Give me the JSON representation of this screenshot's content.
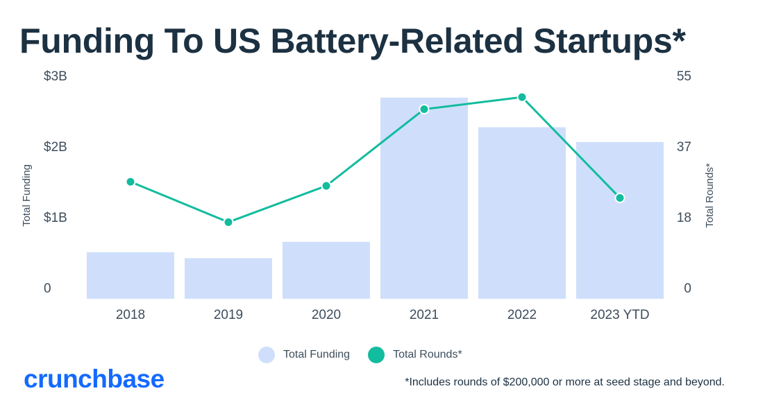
{
  "title": "Funding To US Battery-Related Startups*",
  "chart_data": {
    "type": "bar",
    "title": "Funding To US Battery-Related Startups*",
    "categories": [
      "2018",
      "2019",
      "2020",
      "2021",
      "2022",
      "2023 YTD"
    ],
    "series": [
      {
        "name": "Total Funding",
        "type": "bar",
        "axis": "left",
        "color": "#cfdffb",
        "values": [
          0.63,
          0.55,
          0.77,
          2.72,
          2.32,
          2.12
        ]
      },
      {
        "name": "Total Rounds*",
        "type": "line",
        "axis": "right",
        "color": "#12bc9e",
        "values": [
          29,
          19,
          28,
          47,
          50,
          25
        ]
      }
    ],
    "ylabel": "Total Funding",
    "y2label": "Total Rounds*",
    "ylim": [
      0,
      3
    ],
    "y2lim": [
      0,
      55
    ],
    "yticks": [
      "0",
      "$1B",
      "$2B",
      "$3B"
    ],
    "y2ticks": [
      "0",
      "18",
      "37",
      "55"
    ],
    "grid": false,
    "legend_position": "bottom-center"
  },
  "legend": [
    {
      "label": "Total Funding",
      "color": "#cfdffb"
    },
    {
      "label": "Total Rounds*",
      "color": "#12bc9e"
    }
  ],
  "logo": "crunchbase",
  "footnote": "*Includes rounds of $200,000 or more at seed stage and beyond."
}
